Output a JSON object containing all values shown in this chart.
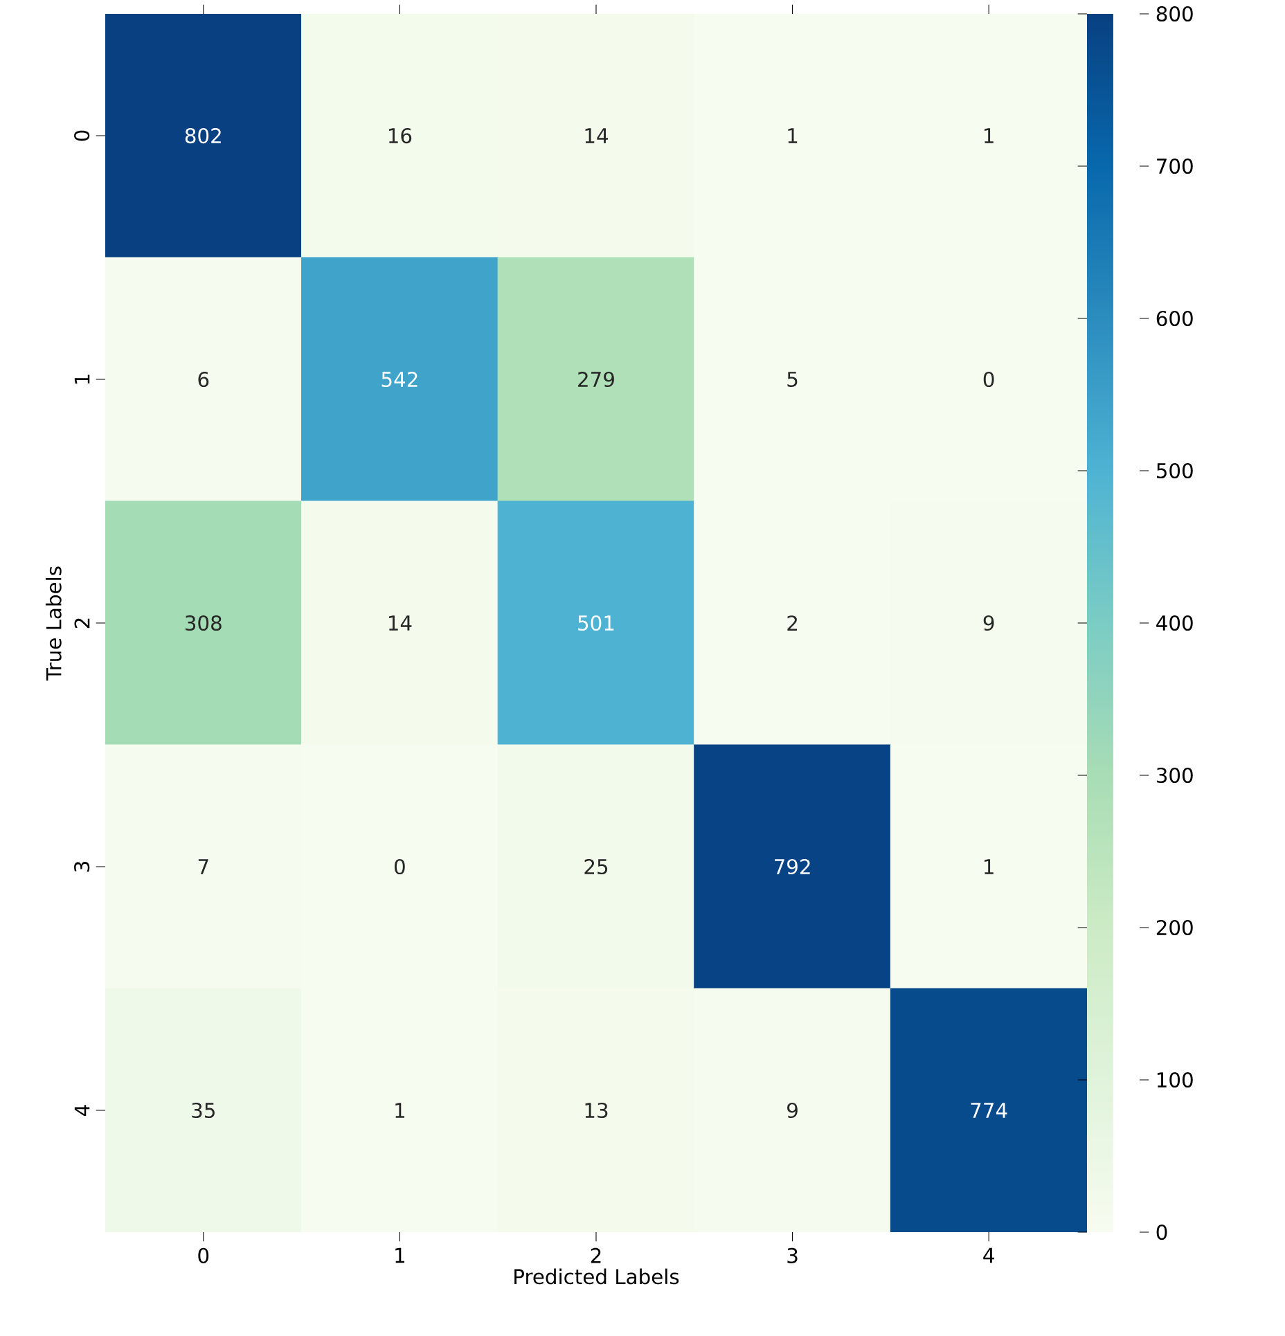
{
  "chart_data": {
    "type": "heatmap",
    "xlabel": "Predicted Labels",
    "ylabel": "True Labels",
    "categories": [
      "0",
      "1",
      "2",
      "3",
      "4"
    ],
    "y_categories": [
      "0",
      "1",
      "2",
      "3",
      "4"
    ],
    "cells": [
      [
        802,
        16,
        14,
        1,
        1
      ],
      [
        6,
        542,
        279,
        5,
        0
      ],
      [
        308,
        14,
        501,
        2,
        9
      ],
      [
        7,
        0,
        25,
        792,
        1
      ],
      [
        35,
        1,
        13,
        9,
        774
      ]
    ],
    "clim": [
      0,
      800
    ],
    "cticks": [
      0,
      100,
      200,
      300,
      400,
      500,
      600,
      700,
      800
    ],
    "data_labels": true
  }
}
